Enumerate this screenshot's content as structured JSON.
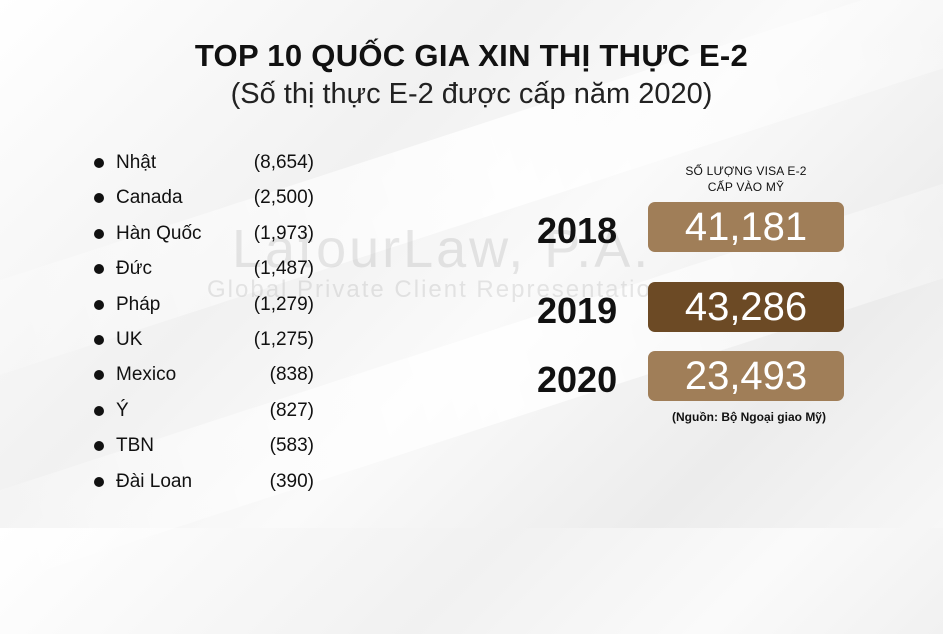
{
  "header": {
    "title": "TOP 10 QUỐC GIA XIN THỊ THỰC E-2",
    "subtitle": "(Số thị thực E-2 được cấp năm 2020)"
  },
  "watermark": {
    "line1": "LatourLaw, P.A.",
    "line2": "Global Private Client Representation"
  },
  "countries": [
    {
      "name": "Nhật",
      "value_label": "(8,654)"
    },
    {
      "name": "Canada",
      "value_label": "(2,500)"
    },
    {
      "name": "Hàn Quốc",
      "value_label": "(1,973)"
    },
    {
      "name": "Đức",
      "value_label": "(1,487)"
    },
    {
      "name": "Pháp",
      "value_label": "(1,279)"
    },
    {
      "name": "UK",
      "value_label": "(1,275)"
    },
    {
      "name": "Mexico",
      "value_label": "(838)"
    },
    {
      "name": "Ý",
      "value_label": "(827)"
    },
    {
      "name": "TBN",
      "value_label": "(583)"
    },
    {
      "name": "Đài Loan",
      "value_label": "(390)"
    }
  ],
  "panel": {
    "header_line1": "SỐ LƯỢNG VISA E-2",
    "header_line2": "CẤP VÀO MỸ",
    "source": "(Nguồn: Bộ Ngoại giao Mỹ)"
  },
  "chart_data": [
    {
      "type": "table",
      "title": "TOP 10 QUỐC GIA XIN THỊ THỰC E-2",
      "subtitle": "(Số thị thực E-2 được cấp năm 2020)",
      "categories": [
        "Nhật",
        "Canada",
        "Hàn Quốc",
        "Đức",
        "Pháp",
        "UK",
        "Mexico",
        "Ý",
        "TBN",
        "Đài Loan"
      ],
      "values": [
        8654,
        2500,
        1973,
        1487,
        1279,
        1275,
        838,
        827,
        583,
        390
      ]
    },
    {
      "type": "table",
      "title": "SỐ LƯỢNG VISA E-2 CẤP VÀO MỸ",
      "categories": [
        "2018",
        "2019",
        "2020"
      ],
      "values": [
        41181,
        43286,
        23493
      ],
      "value_labels": [
        "41,181",
        "43,286",
        "23,493"
      ],
      "colors": [
        "#a07e58",
        "#6c4a25",
        "#a07e58"
      ],
      "annotations": [
        "(Nguồn: Bộ Ngoại giao Mỹ)"
      ]
    }
  ]
}
